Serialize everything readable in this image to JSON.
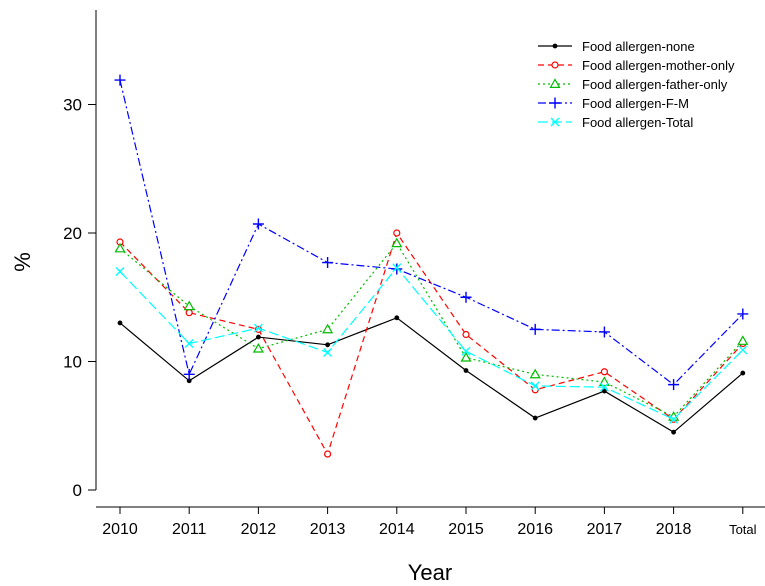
{
  "chart_data": {
    "type": "line",
    "categories": [
      "2010",
      "2011",
      "2012",
      "2013",
      "2014",
      "2015",
      "2016",
      "2017",
      "2018",
      "Total"
    ],
    "xlabel": "Year",
    "ylabel": "%",
    "ylim": [
      0,
      36
    ],
    "yticks": [
      0,
      10,
      20,
      30
    ],
    "grid": false,
    "legend_position": "top-right",
    "series": [
      {
        "name": "Food allergen-none",
        "color": "#000000",
        "dash": "solid",
        "marker": "dot",
        "values": [
          13.0,
          8.5,
          11.9,
          11.3,
          13.4,
          9.3,
          5.6,
          7.7,
          4.5,
          9.1
        ]
      },
      {
        "name": "Food allergen-mother-only",
        "color": "#ff0000",
        "dash": "dashed",
        "marker": "circle",
        "values": [
          19.3,
          13.8,
          12.5,
          2.8,
          20.0,
          12.1,
          7.8,
          9.2,
          5.5,
          11.4
        ]
      },
      {
        "name": "Food allergen-father-only",
        "color": "#00bb00",
        "dash": "dotted",
        "marker": "triangle",
        "values": [
          18.8,
          14.3,
          11.0,
          12.5,
          19.2,
          10.3,
          9.0,
          8.4,
          5.7,
          11.6
        ]
      },
      {
        "name": "Food allergen-F-M",
        "color": "#0000ff",
        "dash": "dashdot",
        "marker": "plus",
        "values": [
          31.9,
          9.0,
          20.7,
          17.7,
          17.2,
          15.0,
          12.5,
          12.3,
          8.2,
          13.7
        ]
      },
      {
        "name": "Food allergen-Total",
        "color": "#00ffff",
        "dash": "longdash",
        "marker": "cross",
        "values": [
          17.0,
          11.4,
          12.6,
          10.7,
          17.3,
          10.8,
          8.1,
          8.0,
          5.5,
          10.9
        ]
      }
    ]
  }
}
